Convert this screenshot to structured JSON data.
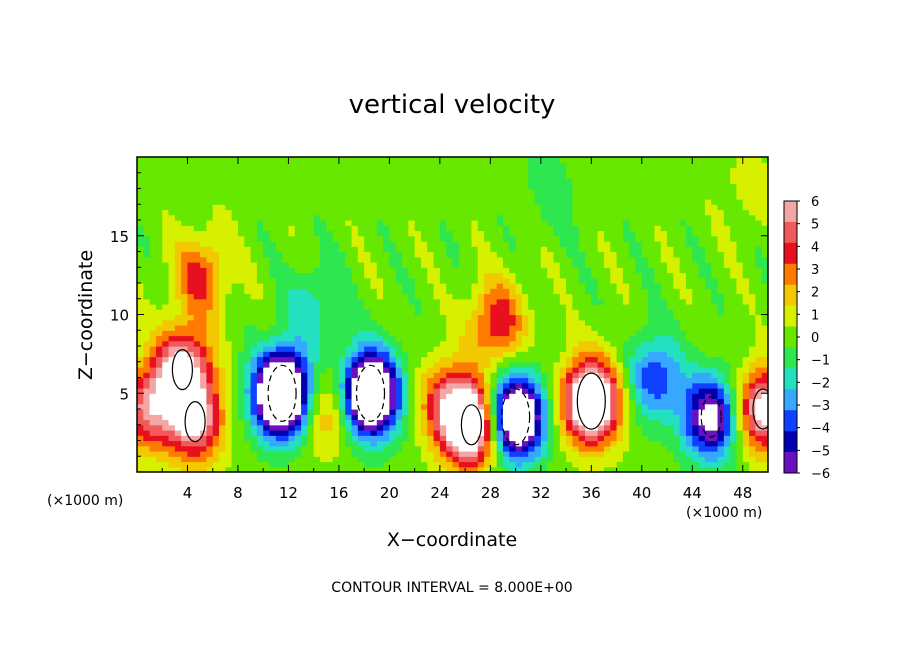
{
  "chart_data": {
    "type": "heatmap",
    "title": "vertical velocity",
    "xlabel": "X−coordinate",
    "ylabel": "Z−coordinate",
    "x_unit": "(×1000 m)",
    "x_unit_right": "(×1000 m)",
    "footer": "CONTOUR INTERVAL = 8.000E+00",
    "xlim": [
      0,
      50
    ],
    "ylim": [
      0,
      20
    ],
    "x_ticks": [
      4,
      8,
      12,
      16,
      20,
      24,
      28,
      32,
      36,
      40,
      44,
      48
    ],
    "y_ticks": [
      5,
      10,
      15
    ],
    "colorbar": {
      "range": [
        -6,
        6
      ],
      "tick_labels": [
        "6",
        "5",
        "4",
        "3",
        "2",
        "1",
        "0",
        "−1",
        "−2",
        "−3",
        "−4",
        "−5",
        "−6"
      ],
      "colors": [
        "#f4a6a6",
        "#f05a5a",
        "#e8101e",
        "#ff7a00",
        "#f2c800",
        "#d6f000",
        "#66e800",
        "#2ee650",
        "#22e0c0",
        "#36a8ff",
        "#1040ff",
        "#0000b0",
        "#6a10c0"
      ]
    },
    "features": [
      {
        "x": 0.8,
        "z": 4.0,
        "w": 5
      },
      {
        "x": 3.6,
        "z": 6.5,
        "w": 7
      },
      {
        "x": 4.6,
        "z": 3.2,
        "w": 6
      },
      {
        "x": 5.0,
        "z": 12.5,
        "w": 3.5
      },
      {
        "x": 11.5,
        "z": 5.0,
        "w": -12
      },
      {
        "x": 15.0,
        "z": 4.0,
        "w": 3
      },
      {
        "x": 18.5,
        "z": 5.0,
        "w": -11
      },
      {
        "x": 14.0,
        "z": 10.5,
        "w": -2
      },
      {
        "x": 24.5,
        "z": 4.5,
        "w": 4
      },
      {
        "x": 26.5,
        "z": 3.0,
        "w": 9
      },
      {
        "x": 28.5,
        "z": 9.5,
        "w": 4
      },
      {
        "x": 30.0,
        "z": 3.5,
        "w": -10
      },
      {
        "x": 36.0,
        "z": 4.5,
        "w": 10
      },
      {
        "x": 41.0,
        "z": 6.0,
        "w": -4
      },
      {
        "x": 45.5,
        "z": 3.5,
        "w": -7
      },
      {
        "x": 49.6,
        "z": 4.0,
        "w": 7
      },
      {
        "x": 48.5,
        "z": 18.0,
        "w": 1
      },
      {
        "x": 33.0,
        "z": 18.0,
        "w": -1
      }
    ]
  }
}
